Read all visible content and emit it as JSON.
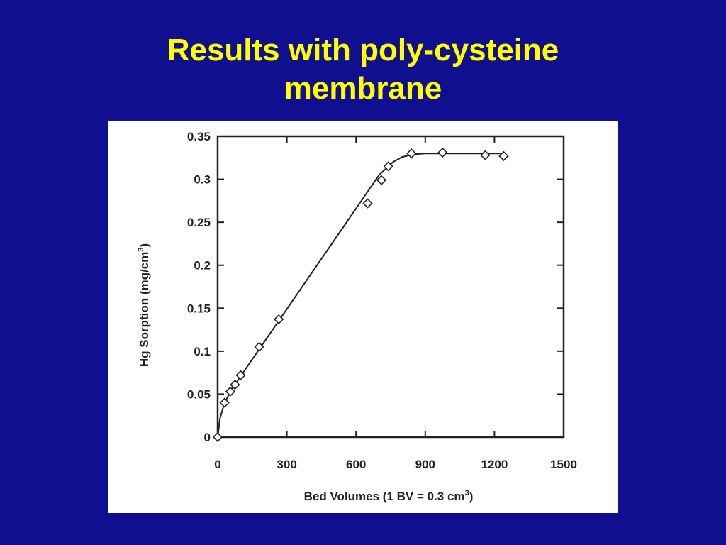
{
  "slide": {
    "title_line1": "Results with poly-cysteine",
    "title_line2": "membrane",
    "title_color": "#ffff00",
    "background_color": "#0f0f8f"
  },
  "chart_data": {
    "type": "scatter",
    "title": "",
    "xlabel_main": "Bed Volumes (1 BV = 0.3 cm",
    "xlabel_sup": "3",
    "xlabel_end": ")",
    "ylabel_main": "Hg Sorption (mg/cm",
    "ylabel_sup": "3",
    "ylabel_end": ")",
    "xlim": [
      0,
      1500
    ],
    "ylim": [
      0,
      0.35
    ],
    "xticks": [
      0,
      300,
      600,
      900,
      1200,
      1500
    ],
    "xtick_labels": [
      "0",
      "300",
      "600",
      "900",
      "1200",
      "1500"
    ],
    "yticks": [
      0,
      0.05,
      0.1,
      0.15,
      0.2,
      0.25,
      0.3,
      0.35
    ],
    "ytick_labels": [
      "0",
      "0.05",
      "0.1",
      "0.15",
      "0.2",
      "0.25",
      "0.3",
      "0.35"
    ],
    "grid": false,
    "series": [
      {
        "marker": "diamond-open",
        "x": [
          0,
          30,
          55,
          75,
          100,
          180,
          265,
          650,
          710,
          740,
          840,
          975,
          1160,
          1240
        ],
        "y": [
          0,
          0.04,
          0.053,
          0.061,
          0.072,
          0.105,
          0.137,
          0.272,
          0.299,
          0.315,
          0.33,
          0.331,
          0.328,
          0.327
        ]
      }
    ],
    "fit_line": {
      "x": [
        0,
        10,
        30,
        60,
        100,
        200,
        300,
        400,
        500,
        600,
        700,
        760,
        800,
        850,
        900,
        1000,
        1100,
        1250
      ],
      "y": [
        0,
        0.022,
        0.04,
        0.055,
        0.071,
        0.11,
        0.149,
        0.188,
        0.227,
        0.266,
        0.305,
        0.32,
        0.326,
        0.329,
        0.33,
        0.33,
        0.33,
        0.33
      ]
    }
  }
}
